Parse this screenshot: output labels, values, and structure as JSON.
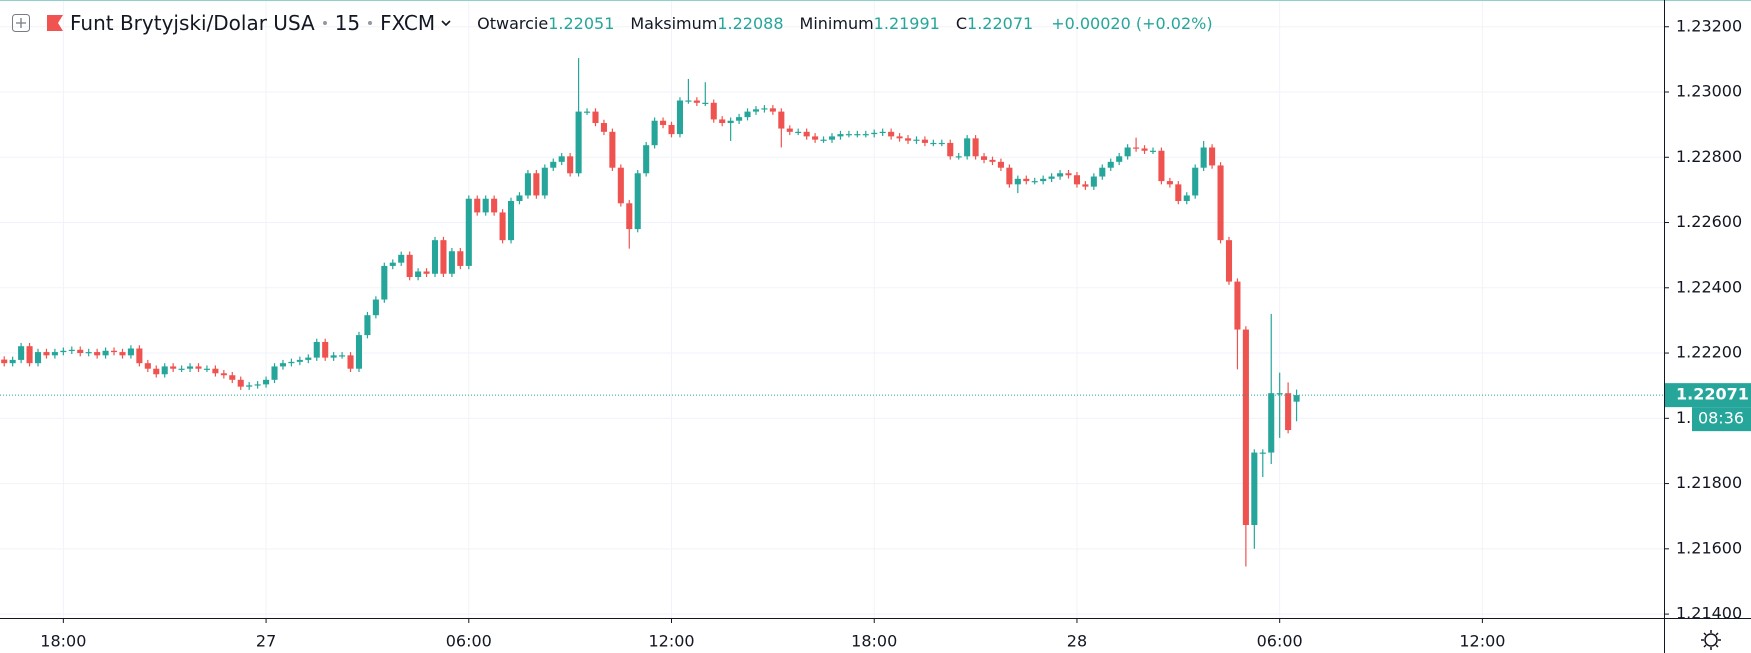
{
  "chart_data": {
    "type": "candlestick",
    "legend": {
      "symbol": "Funt Brytyjski/Dolar USA",
      "interval": "15",
      "source": "FXCM",
      "open_label": "Otwarcie",
      "high_label": "Maksimum",
      "low_label": "Minimum",
      "close_label": "C",
      "change": "+0.00020 (+0.02%)"
    },
    "countdown": "08:36",
    "up_color": "#26a69a",
    "down_color": "#ef5350",
    "grid": true,
    "ylim": [
      1.21388,
      1.23282
    ],
    "yticks": [
      {
        "value": 1.214,
        "label": "1.21400"
      },
      {
        "value": 1.216,
        "label": "1.21600"
      },
      {
        "value": 1.218,
        "label": "1.21800"
      },
      {
        "value": 1.22,
        "label": "1.22000"
      },
      {
        "value": 1.222,
        "label": "1.22200"
      },
      {
        "value": 1.224,
        "label": "1.22400"
      },
      {
        "value": 1.226,
        "label": "1.22600"
      },
      {
        "value": 1.228,
        "label": "1.22800"
      },
      {
        "value": 1.23,
        "label": "1.23000"
      },
      {
        "value": 1.232,
        "label": "1.23200"
      }
    ],
    "categories": [
      null,
      null,
      null,
      null,
      null,
      null,
      null,
      "18:00",
      null,
      null,
      null,
      null,
      null,
      null,
      null,
      null,
      null,
      null,
      null,
      null,
      null,
      null,
      null,
      null,
      null,
      null,
      null,
      null,
      null,
      null,
      null,
      "27",
      null,
      null,
      null,
      null,
      null,
      null,
      null,
      null,
      null,
      null,
      null,
      null,
      null,
      null,
      null,
      null,
      null,
      null,
      null,
      null,
      null,
      null,
      null,
      "06:00",
      null,
      null,
      null,
      null,
      null,
      null,
      null,
      null,
      null,
      null,
      null,
      null,
      null,
      null,
      null,
      null,
      null,
      null,
      null,
      null,
      null,
      null,
      null,
      "12:00",
      null,
      null,
      null,
      null,
      null,
      null,
      null,
      null,
      null,
      null,
      null,
      null,
      null,
      null,
      null,
      null,
      null,
      null,
      null,
      null,
      null,
      null,
      null,
      "18:00",
      null,
      null,
      null,
      null,
      null,
      null,
      null,
      null,
      null,
      null,
      null,
      null,
      null,
      null,
      null,
      null,
      null,
      null,
      null,
      null,
      null,
      null,
      null,
      "28",
      null,
      null,
      null,
      null,
      null,
      null,
      null,
      null,
      null,
      null,
      null,
      null,
      null,
      null,
      null,
      null,
      null,
      null,
      null,
      null,
      null,
      null,
      null,
      "06:00",
      null,
      null,
      null,
      null,
      null,
      null,
      null,
      null,
      null,
      null,
      null,
      null,
      null,
      null,
      null,
      null,
      null,
      null,
      null,
      null,
      null,
      null,
      null,
      "12:00",
      null,
      null,
      null,
      null,
      null,
      null,
      null,
      null,
      null,
      null,
      null,
      null,
      null,
      null,
      null,
      null,
      null,
      null,
      null,
      null,
      null
    ],
    "open": [
      1.2218,
      1.22169,
      1.22179,
      1.22221,
      1.22169,
      1.22203,
      1.22193,
      1.22203,
      1.22207,
      1.2221,
      1.222,
      1.22203,
      1.22193,
      1.22207,
      1.22203,
      1.22193,
      1.22214,
      1.22169,
      1.22152,
      1.22135,
      1.22159,
      1.22152,
      1.22152,
      1.22159,
      1.22152,
      1.22152,
      1.22138,
      1.22132,
      1.22118,
      1.22097,
      1.22101,
      1.22104,
      1.22118,
      1.22159,
      1.22169,
      1.22173,
      1.22179,
      1.22186,
      1.22234,
      1.22186,
      1.22193,
      1.22193,
      1.22152,
      1.22255,
      1.22316,
      1.22364,
      1.22467,
      1.22477,
      1.22501,
      1.22433,
      1.2245,
      1.22443,
      1.22546,
      1.22443,
      1.22512,
      1.22467,
      1.22673,
      1.22631,
      1.22673,
      1.22631,
      1.22546,
      1.22666,
      1.22683,
      1.22751,
      1.22683,
      1.22768,
      1.22786,
      1.22803,
      1.22751,
      1.2294,
      1.2294,
      1.22905,
      1.22878,
      1.22768,
      1.22659,
      1.2258,
      1.22751,
      1.22837,
      1.22912,
      1.22899,
      1.22871,
      1.22974,
      1.22974,
      1.22967,
      1.22967,
      1.22916,
      1.22905,
      1.22912,
      1.22923,
      1.2294,
      1.22947,
      1.2295,
      1.2294,
      1.22888,
      1.22878,
      1.22878,
      1.22864,
      1.22854,
      1.22854,
      1.22864,
      1.22871,
      1.22871,
      1.22871,
      1.22871,
      1.22875,
      1.22878,
      1.22864,
      1.22858,
      1.22851,
      1.22854,
      1.22844,
      1.22844,
      1.22844,
      1.22803,
      1.22803,
      1.22858,
      1.22803,
      1.22792,
      1.22786,
      1.22768,
      1.22717,
      1.22734,
      1.22727,
      1.22727,
      1.22734,
      1.22741,
      1.22751,
      1.22745,
      1.22717,
      1.2271,
      1.22741,
      1.22768,
      1.22786,
      1.22803,
      1.2283,
      1.22827,
      1.2282,
      1.2282,
      1.22727,
      1.22717,
      1.22666,
      1.22683,
      1.22768,
      1.2283,
      1.22775,
      1.22546,
      1.22419,
      1.22272,
      1.21673,
      1.21895,
      1.21895,
      1.22077,
      1.22077,
      1.22051,
      null,
      null,
      null,
      null,
      null,
      null,
      null,
      null,
      null,
      null,
      null,
      null,
      null,
      null,
      null,
      null,
      null,
      null,
      null,
      null,
      null,
      null,
      null,
      null,
      null,
      null,
      null,
      null,
      null,
      null,
      null,
      null,
      null,
      null,
      null,
      null,
      null,
      null,
      null,
      null,
      null,
      null,
      null
    ],
    "high": [
      1.2219,
      1.22189,
      1.22231,
      1.22231,
      1.22213,
      1.22213,
      1.22213,
      1.22217,
      1.2222,
      1.2222,
      1.22213,
      1.22213,
      1.22217,
      1.22217,
      1.22213,
      1.22224,
      1.22224,
      1.22179,
      1.22162,
      1.22169,
      1.22169,
      1.22162,
      1.22169,
      1.22169,
      1.22162,
      1.22162,
      1.22148,
      1.22142,
      1.22128,
      1.22111,
      1.22114,
      1.22128,
      1.22169,
      1.22179,
      1.22183,
      1.22189,
      1.22196,
      1.22244,
      1.22244,
      1.22203,
      1.22203,
      1.22203,
      1.22265,
      1.22326,
      1.22374,
      1.22477,
      1.22487,
      1.22511,
      1.22511,
      1.2246,
      1.2246,
      1.22556,
      1.22556,
      1.22522,
      1.22522,
      1.22683,
      1.22683,
      1.22683,
      1.22683,
      1.22641,
      1.22676,
      1.22693,
      1.22761,
      1.22761,
      1.22778,
      1.22796,
      1.22813,
      1.22813,
      1.23104,
      1.2295,
      1.2295,
      1.22915,
      1.22888,
      1.22778,
      1.22669,
      1.22761,
      1.22847,
      1.22922,
      1.22922,
      1.22909,
      1.22984,
      1.2304,
      1.22984,
      1.2303,
      1.22977,
      1.22926,
      1.22922,
      1.22933,
      1.2295,
      1.22957,
      1.2296,
      1.2296,
      1.2295,
      1.22898,
      1.22888,
      1.22888,
      1.22874,
      1.22864,
      1.22874,
      1.22881,
      1.22881,
      1.22881,
      1.22881,
      1.22885,
      1.22888,
      1.22888,
      1.22874,
      1.22868,
      1.22864,
      1.22864,
      1.22854,
      1.22854,
      1.22854,
      1.22813,
      1.22868,
      1.22868,
      1.22813,
      1.22802,
      1.22796,
      1.22778,
      1.22744,
      1.22744,
      1.22737,
      1.22744,
      1.22751,
      1.22761,
      1.22761,
      1.22755,
      1.22727,
      1.22751,
      1.22778,
      1.22796,
      1.22813,
      1.2284,
      1.2286,
      1.22837,
      1.2283,
      1.2283,
      1.22737,
      1.22727,
      1.22693,
      1.22778,
      1.2285,
      1.2284,
      1.22785,
      1.22556,
      1.22429,
      1.22282,
      1.21905,
      1.21905,
      1.2232,
      1.2214,
      1.2211,
      1.22088,
      null,
      null,
      null,
      null,
      null,
      null,
      null,
      null,
      null,
      null,
      null,
      null,
      null,
      null,
      null,
      null,
      null,
      null,
      null,
      null,
      null,
      null,
      null,
      null,
      null,
      null,
      null,
      null,
      null,
      null,
      null,
      null,
      null,
      null,
      null,
      null,
      null,
      null,
      null,
      null,
      null,
      null,
      null
    ],
    "low": [
      1.22159,
      1.22159,
      1.22169,
      1.22159,
      1.22159,
      1.22183,
      1.22183,
      1.22193,
      1.22197,
      1.2219,
      1.2219,
      1.22183,
      1.22183,
      1.22193,
      1.22183,
      1.22183,
      1.22159,
      1.22142,
      1.22125,
      1.22125,
      1.22142,
      1.22142,
      1.22142,
      1.22142,
      1.22142,
      1.22128,
      1.22122,
      1.22108,
      1.22087,
      1.22087,
      1.22091,
      1.22094,
      1.22108,
      1.22149,
      1.22159,
      1.22163,
      1.22169,
      1.22176,
      1.22176,
      1.22176,
      1.22183,
      1.22142,
      1.22142,
      1.22245,
      1.22306,
      1.22354,
      1.22457,
      1.22467,
      1.22423,
      1.22423,
      1.22433,
      1.22433,
      1.22433,
      1.22433,
      1.22457,
      1.22457,
      1.22621,
      1.22621,
      1.22621,
      1.22536,
      1.22536,
      1.22656,
      1.22673,
      1.22673,
      1.22673,
      1.22758,
      1.22776,
      1.22741,
      1.22741,
      1.2293,
      1.22895,
      1.22868,
      1.22758,
      1.22649,
      1.2252,
      1.2257,
      1.22741,
      1.22827,
      1.22889,
      1.22861,
      1.22861,
      1.22964,
      1.22957,
      1.22957,
      1.22906,
      1.22895,
      1.2285,
      1.22902,
      1.22913,
      1.2293,
      1.22937,
      1.2293,
      1.2283,
      1.22868,
      1.22868,
      1.22854,
      1.22844,
      1.22844,
      1.22844,
      1.22854,
      1.22861,
      1.22861,
      1.22861,
      1.22861,
      1.22865,
      1.22854,
      1.22848,
      1.22841,
      1.22841,
      1.22834,
      1.22834,
      1.22834,
      1.22793,
      1.22793,
      1.22793,
      1.22793,
      1.22782,
      1.22776,
      1.22758,
      1.22707,
      1.2269,
      1.22717,
      1.22717,
      1.22717,
      1.22724,
      1.22731,
      1.22735,
      1.22707,
      1.227,
      1.227,
      1.22731,
      1.22758,
      1.22776,
      1.22793,
      1.22817,
      1.2281,
      1.2281,
      1.22717,
      1.22707,
      1.22656,
      1.22656,
      1.22673,
      1.22758,
      1.22765,
      1.22536,
      1.22409,
      1.2215,
      1.21546,
      1.216,
      1.2182,
      1.2186,
      1.2194,
      1.21954,
      1.21991,
      null,
      null,
      null,
      null,
      null,
      null,
      null,
      null,
      null,
      null,
      null,
      null,
      null,
      null,
      null,
      null,
      null,
      null,
      null,
      null,
      null,
      null,
      null,
      null,
      null,
      null,
      null,
      null,
      null,
      null,
      null,
      null,
      null,
      null,
      null,
      null,
      null,
      null,
      null,
      null,
      null,
      null,
      null
    ],
    "close": [
      1.22169,
      1.22179,
      1.22221,
      1.22169,
      1.22203,
      1.22193,
      1.22203,
      1.22207,
      1.2221,
      1.222,
      1.22203,
      1.22193,
      1.22207,
      1.22203,
      1.22193,
      1.22214,
      1.22169,
      1.22152,
      1.22135,
      1.22159,
      1.22152,
      1.22152,
      1.22159,
      1.22152,
      1.22152,
      1.22138,
      1.22132,
      1.22118,
      1.22097,
      1.22101,
      1.22104,
      1.22118,
      1.22159,
      1.22169,
      1.22173,
      1.22179,
      1.22186,
      1.22234,
      1.22186,
      1.22193,
      1.22193,
      1.22152,
      1.22255,
      1.22316,
      1.22364,
      1.22467,
      1.22477,
      1.22501,
      1.22433,
      1.2245,
      1.22443,
      1.22546,
      1.22443,
      1.22512,
      1.22467,
      1.22673,
      1.22631,
      1.22673,
      1.22631,
      1.22546,
      1.22666,
      1.22683,
      1.22751,
      1.22683,
      1.22768,
      1.22786,
      1.22803,
      1.22751,
      1.2294,
      1.2294,
      1.22905,
      1.22878,
      1.22768,
      1.22659,
      1.2258,
      1.22751,
      1.22837,
      1.22912,
      1.22899,
      1.22871,
      1.22974,
      1.22974,
      1.22967,
      1.22967,
      1.22916,
      1.22905,
      1.22912,
      1.22923,
      1.2294,
      1.22947,
      1.2295,
      1.2294,
      1.22888,
      1.22878,
      1.22878,
      1.22864,
      1.22854,
      1.22854,
      1.22864,
      1.22871,
      1.22871,
      1.22871,
      1.22871,
      1.22875,
      1.22878,
      1.22864,
      1.22858,
      1.22851,
      1.22854,
      1.22844,
      1.22844,
      1.22844,
      1.22803,
      1.22803,
      1.22858,
      1.22803,
      1.22792,
      1.22786,
      1.22768,
      1.22717,
      1.22734,
      1.22727,
      1.22727,
      1.22734,
      1.22741,
      1.22751,
      1.22745,
      1.22717,
      1.2271,
      1.22741,
      1.22768,
      1.22786,
      1.22803,
      1.2283,
      1.22827,
      1.2282,
      1.2282,
      1.22727,
      1.22717,
      1.22666,
      1.22683,
      1.22768,
      1.2283,
      1.22775,
      1.22546,
      1.22419,
      1.22272,
      1.21673,
      1.21895,
      1.21895,
      1.22077,
      1.22077,
      1.21964,
      1.22071,
      null,
      null,
      null,
      null,
      null,
      null,
      null,
      null,
      null,
      null,
      null,
      null,
      null,
      null,
      null,
      null,
      null,
      null,
      null,
      null,
      null,
      null,
      null,
      null,
      null,
      null,
      null,
      null,
      null,
      null,
      null,
      null,
      null,
      null,
      null,
      null,
      null,
      null,
      null,
      null,
      null,
      null,
      null
    ]
  }
}
